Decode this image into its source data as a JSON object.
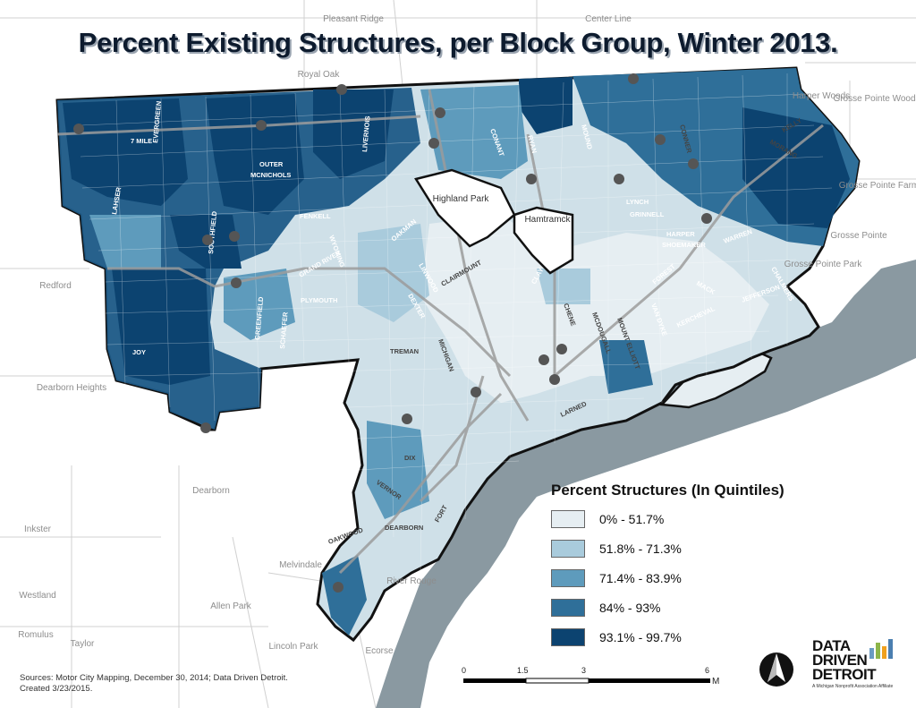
{
  "title": "Percent Existing Structures, per Block Group, Winter 2013.",
  "legend": {
    "title": "Percent Structures (In Quintiles)",
    "items": [
      {
        "label": "0% - 51.7%",
        "color": "#e6eef2"
      },
      {
        "label": "51.8% - 71.3%",
        "color": "#a9cbdc"
      },
      {
        "label": "71.4% - 83.9%",
        "color": "#5e9bbc"
      },
      {
        "label": "84% - 93%",
        "color": "#2f6f99"
      },
      {
        "label": "93.1% - 99.7%",
        "color": "#0c4370"
      }
    ]
  },
  "places_outside": [
    "Pleasant Ridge",
    "Royal Oak",
    "Center Line",
    "Harper Woods",
    "Grosse Pointe Woods",
    "Grosse Pointe Farms",
    "Grosse Pointe",
    "Grosse Pointe Park",
    "Redford",
    "Dearborn Heights",
    "Dearborn",
    "Inkster",
    "Melvindale",
    "Westland",
    "Allen Park",
    "Romulus",
    "Taylor",
    "Lincoln Park",
    "River Rouge",
    "Ecorse"
  ],
  "enclaves": [
    "Highland Park",
    "Hamtramck"
  ],
  "roads": [
    "7 MILE",
    "OUTER",
    "MCNICHOLS",
    "FENKELL",
    "LAHSER",
    "EVERGREEN",
    "SOUTHFIELD",
    "SCHAEFER",
    "WYOMING",
    "GRAND RIVER",
    "PLYMOUTH",
    "JOY",
    "GREENFIELD",
    "LIVERNOIS",
    "DEXTER",
    "OAKMAN",
    "LINWOOD",
    "CLAY",
    "CONANT",
    "RYAN",
    "MOUND",
    "LYNCH",
    "GRINNELL",
    "HARPER",
    "SHOEMAKER",
    "WARREN",
    "CHALMERS",
    "JEFFERSON",
    "KERCHEVAL",
    "MACK",
    "VAN DYKE",
    "FOREST",
    "GRATIOT",
    "CHENE",
    "MCDOUGALL",
    "MOUNT ELLIOTT",
    "TREMAN",
    "MICHIGAN",
    "DIX",
    "VERNOR",
    "DEARBORN",
    "OAKWOOD",
    "FORT",
    "LARNED",
    "MORANG",
    "KELLY",
    "CONNER",
    "CLAIRMOUNT",
    "WALTON",
    "VAN DYKE"
  ],
  "sources": "Sources: Motor City Mapping, December 30, 2014; Data Driven Detroit.",
  "created": "Created 3/23/2015.",
  "scale": {
    "ticks": [
      "0",
      "1.5",
      "3",
      "6"
    ],
    "unit": "Miles"
  },
  "logo": {
    "lines": [
      "DATA",
      "DRIVEN",
      "DETROIT"
    ],
    "tagline": "A Michigan Nonprofit Association Affiliate"
  }
}
